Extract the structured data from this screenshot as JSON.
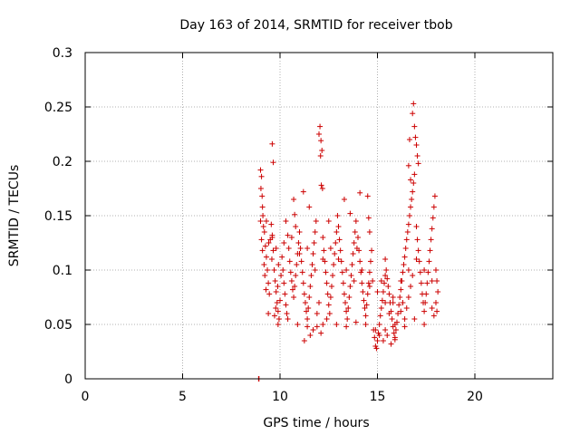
{
  "chart_data": {
    "type": "scatter",
    "title": "Day 163 of 2014, SRMTID for receiver tbob",
    "xlabel": "GPS time / hours",
    "ylabel": "SRMTID / TECUs",
    "xlim": [
      0,
      24
    ],
    "ylim": [
      0,
      0.3
    ],
    "xticks": [
      0,
      5,
      10,
      15,
      20
    ],
    "yticks": [
      0,
      0.05,
      0.1,
      0.15,
      0.2,
      0.25,
      0.3
    ],
    "xtick_labels": [
      "0",
      "5",
      "10",
      "15",
      "20"
    ],
    "ytick_labels": [
      "0",
      "0.05",
      "0.1",
      "0.15",
      "0.2",
      "0.25",
      "0.3"
    ],
    "grid": true,
    "marker": "+",
    "series": [
      {
        "name": "SRMTID",
        "color": "#cc0000",
        "points": [
          [
            8.9,
            0.0
          ],
          [
            8.92,
            0.0
          ],
          [
            9.0,
            0.192
          ],
          [
            9.05,
            0.186
          ],
          [
            9.02,
            0.175
          ],
          [
            9.08,
            0.168
          ],
          [
            9.1,
            0.158
          ],
          [
            9.12,
            0.15
          ],
          [
            9.0,
            0.145
          ],
          [
            9.15,
            0.14
          ],
          [
            9.2,
            0.135
          ],
          [
            9.05,
            0.128
          ],
          [
            9.25,
            0.122
          ],
          [
            9.1,
            0.118
          ],
          [
            9.3,
            0.112
          ],
          [
            9.18,
            0.105
          ],
          [
            9.35,
            0.1
          ],
          [
            9.22,
            0.095
          ],
          [
            9.4,
            0.088
          ],
          [
            9.28,
            0.082
          ],
          [
            9.45,
            0.078
          ],
          [
            9.5,
            0.128
          ],
          [
            9.55,
            0.142
          ],
          [
            9.6,
            0.132
          ],
          [
            9.42,
            0.125
          ],
          [
            9.65,
            0.118
          ],
          [
            9.58,
            0.11
          ],
          [
            9.6,
            0.216
          ],
          [
            9.65,
            0.199
          ],
          [
            9.7,
            0.1
          ],
          [
            9.75,
            0.09
          ],
          [
            9.8,
            0.08
          ],
          [
            9.85,
            0.07
          ],
          [
            9.9,
            0.062
          ],
          [
            9.72,
            0.058
          ],
          [
            9.95,
            0.055
          ],
          [
            9.78,
            0.065
          ],
          [
            10.0,
            0.072
          ],
          [
            9.88,
            0.085
          ],
          [
            10.05,
            0.095
          ],
          [
            9.92,
            0.105
          ],
          [
            10.1,
            0.112
          ],
          [
            10.15,
            0.1
          ],
          [
            10.2,
            0.088
          ],
          [
            10.25,
            0.078
          ],
          [
            10.3,
            0.068
          ],
          [
            10.35,
            0.06
          ],
          [
            10.3,
            0.145
          ],
          [
            10.4,
            0.132
          ],
          [
            10.45,
            0.12
          ],
          [
            10.5,
            0.108
          ],
          [
            10.55,
            0.098
          ],
          [
            10.6,
            0.09
          ],
          [
            10.65,
            0.082
          ],
          [
            10.7,
            0.075
          ],
          [
            10.75,
            0.085
          ],
          [
            10.8,
            0.095
          ],
          [
            10.85,
            0.105
          ],
          [
            10.9,
            0.115
          ],
          [
            10.95,
            0.125
          ],
          [
            10.7,
            0.165
          ],
          [
            10.75,
            0.151
          ],
          [
            10.8,
            0.14
          ],
          [
            11.0,
            0.135
          ],
          [
            11.05,
            0.12
          ],
          [
            11.1,
            0.108
          ],
          [
            11.15,
            0.098
          ],
          [
            11.2,
            0.088
          ],
          [
            11.25,
            0.078
          ],
          [
            11.3,
            0.07
          ],
          [
            11.35,
            0.062
          ],
          [
            11.4,
            0.055
          ],
          [
            11.45,
            0.065
          ],
          [
            11.5,
            0.075
          ],
          [
            11.55,
            0.085
          ],
          [
            11.6,
            0.095
          ],
          [
            11.65,
            0.105
          ],
          [
            11.7,
            0.115
          ],
          [
            11.75,
            0.125
          ],
          [
            11.8,
            0.135
          ],
          [
            11.2,
            0.172
          ],
          [
            11.5,
            0.158
          ],
          [
            11.85,
            0.145
          ],
          [
            11.25,
            0.035
          ],
          [
            11.55,
            0.04
          ],
          [
            11.7,
            0.045
          ],
          [
            12.0,
            0.225
          ],
          [
            12.05,
            0.232
          ],
          [
            12.1,
            0.219
          ],
          [
            12.15,
            0.21
          ],
          [
            12.08,
            0.205
          ],
          [
            12.12,
            0.178
          ],
          [
            12.18,
            0.175
          ],
          [
            12.2,
            0.13
          ],
          [
            12.25,
            0.118
          ],
          [
            12.3,
            0.108
          ],
          [
            12.35,
            0.098
          ],
          [
            12.4,
            0.088
          ],
          [
            12.45,
            0.078
          ],
          [
            12.5,
            0.068
          ],
          [
            12.55,
            0.06
          ],
          [
            12.0,
            0.07
          ],
          [
            12.6,
            0.075
          ],
          [
            12.65,
            0.085
          ],
          [
            12.7,
            0.095
          ],
          [
            12.75,
            0.105
          ],
          [
            12.8,
            0.115
          ],
          [
            12.85,
            0.125
          ],
          [
            12.9,
            0.135
          ],
          [
            12.5,
            0.145
          ],
          [
            12.95,
            0.15
          ],
          [
            11.9,
            0.048
          ],
          [
            12.1,
            0.042
          ],
          [
            12.2,
            0.05
          ],
          [
            13.0,
            0.14
          ],
          [
            13.05,
            0.128
          ],
          [
            13.1,
            0.118
          ],
          [
            13.15,
            0.108
          ],
          [
            13.2,
            0.098
          ],
          [
            13.25,
            0.088
          ],
          [
            13.3,
            0.078
          ],
          [
            13.35,
            0.07
          ],
          [
            13.4,
            0.062
          ],
          [
            13.45,
            0.055
          ],
          [
            13.5,
            0.065
          ],
          [
            13.55,
            0.075
          ],
          [
            13.6,
            0.085
          ],
          [
            13.65,
            0.095
          ],
          [
            13.7,
            0.105
          ],
          [
            13.75,
            0.115
          ],
          [
            13.8,
            0.125
          ],
          [
            13.85,
            0.135
          ],
          [
            13.9,
            0.145
          ],
          [
            13.3,
            0.165
          ],
          [
            13.6,
            0.152
          ],
          [
            13.95,
            0.12
          ],
          [
            14.0,
            0.13
          ],
          [
            14.05,
            0.118
          ],
          [
            14.1,
            0.108
          ],
          [
            14.15,
            0.098
          ],
          [
            14.2,
            0.088
          ],
          [
            14.25,
            0.08
          ],
          [
            14.3,
            0.072
          ],
          [
            14.35,
            0.065
          ],
          [
            14.4,
            0.058
          ],
          [
            14.45,
            0.068
          ],
          [
            14.5,
            0.078
          ],
          [
            14.55,
            0.088
          ],
          [
            14.6,
            0.098
          ],
          [
            14.65,
            0.108
          ],
          [
            14.7,
            0.118
          ],
          [
            14.1,
            0.171
          ],
          [
            14.5,
            0.168
          ],
          [
            14.55,
            0.148
          ],
          [
            14.6,
            0.135
          ],
          [
            14.75,
            0.09
          ],
          [
            14.8,
            0.045
          ],
          [
            14.85,
            0.038
          ],
          [
            14.9,
            0.03
          ],
          [
            14.95,
            0.028
          ],
          [
            15.0,
            0.035
          ],
          [
            15.05,
            0.042
          ],
          [
            15.1,
            0.05
          ],
          [
            15.15,
            0.058
          ],
          [
            15.2,
            0.065
          ],
          [
            15.25,
            0.072
          ],
          [
            15.3,
            0.08
          ],
          [
            15.35,
            0.088
          ],
          [
            15.4,
            0.095
          ],
          [
            15.45,
            0.1
          ],
          [
            15.5,
            0.092
          ],
          [
            15.55,
            0.085
          ],
          [
            15.6,
            0.078
          ],
          [
            15.65,
            0.07
          ],
          [
            15.7,
            0.062
          ],
          [
            15.75,
            0.055
          ],
          [
            15.8,
            0.048
          ],
          [
            15.85,
            0.042
          ],
          [
            15.9,
            0.038
          ],
          [
            15.95,
            0.045
          ],
          [
            15.2,
            0.09
          ],
          [
            15.4,
            0.11
          ],
          [
            15.6,
            0.06
          ],
          [
            15.8,
            0.07
          ],
          [
            15.1,
            0.04
          ],
          [
            15.3,
            0.035
          ],
          [
            15.5,
            0.04
          ],
          [
            15.7,
            0.032
          ],
          [
            15.9,
            0.036
          ],
          [
            16.0,
            0.052
          ],
          [
            16.05,
            0.06
          ],
          [
            16.1,
            0.068
          ],
          [
            16.15,
            0.075
          ],
          [
            16.2,
            0.082
          ],
          [
            16.25,
            0.09
          ],
          [
            16.3,
            0.098
          ],
          [
            16.35,
            0.105
          ],
          [
            16.4,
            0.112
          ],
          [
            16.45,
            0.12
          ],
          [
            16.5,
            0.128
          ],
          [
            16.55,
            0.135
          ],
          [
            16.6,
            0.142
          ],
          [
            16.65,
            0.15
          ],
          [
            16.7,
            0.158
          ],
          [
            16.75,
            0.165
          ],
          [
            16.8,
            0.172
          ],
          [
            16.85,
            0.18
          ],
          [
            16.9,
            0.188
          ],
          [
            16.4,
            0.055
          ],
          [
            16.5,
            0.065
          ],
          [
            16.6,
            0.075
          ],
          [
            16.7,
            0.085
          ],
          [
            16.8,
            0.095
          ],
          [
            16.2,
            0.062
          ],
          [
            16.3,
            0.07
          ],
          [
            16.6,
            0.196
          ],
          [
            16.65,
            0.22
          ],
          [
            16.7,
            0.183
          ],
          [
            16.8,
            0.244
          ],
          [
            16.85,
            0.253
          ],
          [
            16.9,
            0.232
          ],
          [
            16.95,
            0.222
          ],
          [
            17.0,
            0.215
          ],
          [
            17.05,
            0.205
          ],
          [
            17.1,
            0.198
          ],
          [
            17.0,
            0.14
          ],
          [
            17.05,
            0.128
          ],
          [
            17.1,
            0.118
          ],
          [
            17.15,
            0.108
          ],
          [
            17.2,
            0.098
          ],
          [
            17.25,
            0.088
          ],
          [
            17.3,
            0.078
          ],
          [
            17.35,
            0.07
          ],
          [
            17.4,
            0.062
          ],
          [
            17.45,
            0.07
          ],
          [
            17.5,
            0.078
          ],
          [
            17.55,
            0.088
          ],
          [
            17.6,
            0.098
          ],
          [
            17.65,
            0.108
          ],
          [
            17.7,
            0.118
          ],
          [
            17.75,
            0.128
          ],
          [
            17.8,
            0.138
          ],
          [
            17.85,
            0.148
          ],
          [
            17.9,
            0.158
          ],
          [
            17.95,
            0.168
          ],
          [
            18.0,
            0.1
          ],
          [
            18.05,
            0.09
          ],
          [
            18.1,
            0.08
          ],
          [
            18.0,
            0.07
          ],
          [
            18.05,
            0.062
          ],
          [
            17.9,
            0.058
          ],
          [
            17.8,
            0.065
          ],
          [
            9.3,
            0.145
          ],
          [
            9.6,
            0.13
          ],
          [
            9.8,
            0.12
          ],
          [
            10.2,
            0.125
          ],
          [
            10.6,
            0.13
          ],
          [
            11.0,
            0.115
          ],
          [
            11.4,
            0.12
          ],
          [
            11.8,
            0.1
          ],
          [
            12.2,
            0.11
          ],
          [
            12.6,
            0.12
          ],
          [
            13.0,
            0.11
          ],
          [
            13.4,
            0.1
          ],
          [
            13.8,
            0.09
          ],
          [
            14.2,
            0.1
          ],
          [
            14.6,
            0.085
          ],
          [
            15.0,
            0.08
          ],
          [
            15.4,
            0.07
          ],
          [
            15.8,
            0.075
          ],
          [
            16.2,
            0.09
          ],
          [
            16.6,
            0.1
          ],
          [
            17.0,
            0.11
          ],
          [
            17.4,
            0.1
          ],
          [
            17.8,
            0.09
          ],
          [
            9.4,
            0.06
          ],
          [
            9.9,
            0.05
          ],
          [
            10.4,
            0.055
          ],
          [
            10.9,
            0.05
          ],
          [
            11.4,
            0.048
          ],
          [
            11.9,
            0.06
          ],
          [
            12.4,
            0.055
          ],
          [
            12.9,
            0.05
          ],
          [
            13.4,
            0.048
          ],
          [
            13.9,
            0.052
          ],
          [
            14.4,
            0.05
          ],
          [
            14.9,
            0.045
          ],
          [
            15.4,
            0.045
          ],
          [
            15.9,
            0.05
          ],
          [
            16.4,
            0.048
          ],
          [
            16.9,
            0.055
          ],
          [
            17.4,
            0.05
          ]
        ]
      }
    ]
  }
}
